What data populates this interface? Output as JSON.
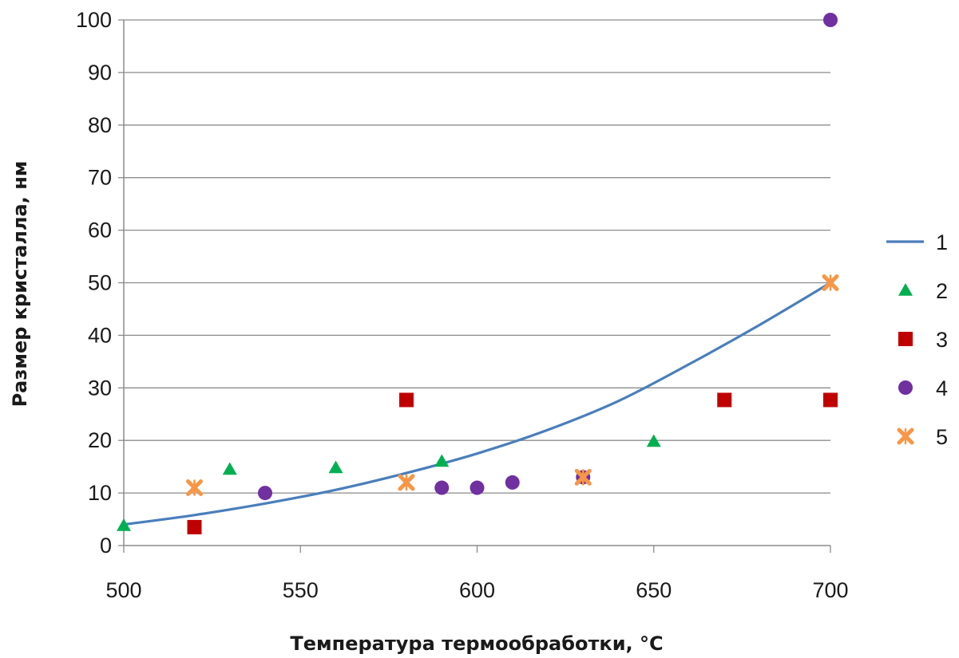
{
  "chart_data": {
    "type": "scatter",
    "title": "",
    "xlabel": "Температура термообработки, °С",
    "ylabel": "Размер кристалла, нм",
    "xlim": [
      500,
      700
    ],
    "ylim": [
      0,
      100
    ],
    "x_ticks": [
      500,
      550,
      600,
      650,
      700
    ],
    "y_ticks": [
      0,
      10,
      20,
      30,
      40,
      50,
      60,
      70,
      80,
      90,
      100
    ],
    "grid": "horizontal",
    "legend_position": "right",
    "series": [
      {
        "name": "1",
        "kind": "line",
        "color": "#4a7ebb",
        "x": [
          500,
          520,
          540,
          560,
          580,
          600,
          620,
          640,
          660,
          680,
          700
        ],
        "y": [
          4.0,
          5.8,
          8.0,
          10.6,
          13.8,
          17.5,
          22.0,
          27.5,
          34.5,
          42.0,
          50.0
        ]
      },
      {
        "name": "2",
        "kind": "triangle",
        "color": "#00b050",
        "x": [
          500,
          530,
          560,
          590,
          650
        ],
        "y": [
          3.8,
          14.5,
          14.8,
          16.0,
          19.8
        ]
      },
      {
        "name": "3",
        "kind": "square",
        "color": "#c00000",
        "x": [
          520,
          580,
          670,
          700
        ],
        "y": [
          3.5,
          27.7,
          27.7,
          27.7
        ]
      },
      {
        "name": "4",
        "kind": "circle",
        "color": "#7030a0",
        "x": [
          540,
          590,
          600,
          610,
          630,
          700
        ],
        "y": [
          10.0,
          11.0,
          11.0,
          12.0,
          13.0,
          100.0
        ]
      },
      {
        "name": "5",
        "kind": "cross",
        "color": "#f79646",
        "x": [
          520,
          580,
          630,
          700
        ],
        "y": [
          11.0,
          12.0,
          13.0,
          50.0
        ]
      }
    ]
  }
}
